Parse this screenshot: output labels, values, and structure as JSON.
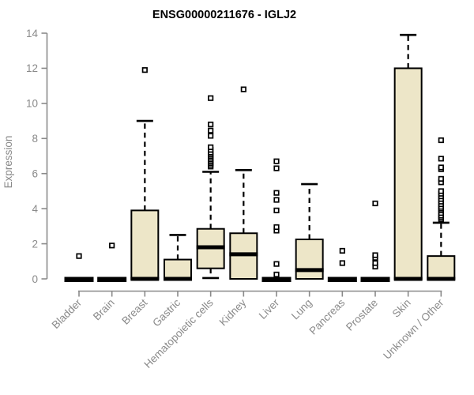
{
  "chart_data": {
    "type": "boxplot",
    "title": "ENSG00000211676 - IGLJ2",
    "xlabel": "",
    "ylabel": "Expression",
    "ylim": [
      0,
      14
    ],
    "yticks": [
      0,
      2,
      4,
      6,
      8,
      10,
      12,
      14
    ],
    "grid": "off",
    "categories": [
      "Bladder",
      "Brain",
      "Breast",
      "Gastric",
      "Hematopoietic cells",
      "Kidney",
      "Liver",
      "Lung",
      "Pancreas",
      "Prostate",
      "Skin",
      "Unknown / Other"
    ],
    "boxes": [
      {
        "category": "Bladder",
        "q1": 0,
        "median": 0,
        "q3": 0,
        "whisker_low": 0,
        "whisker_high": 0,
        "outliers": [
          1.3
        ]
      },
      {
        "category": "Brain",
        "q1": 0,
        "median": 0,
        "q3": 0,
        "whisker_low": 0,
        "whisker_high": 0,
        "outliers": [
          1.9
        ]
      },
      {
        "category": "Breast",
        "q1": 0,
        "median": 0,
        "q3": 3.9,
        "whisker_low": 0,
        "whisker_high": 9.0,
        "outliers": [
          11.9
        ]
      },
      {
        "category": "Gastric",
        "q1": 0,
        "median": 0,
        "q3": 1.1,
        "whisker_low": 0,
        "whisker_high": 2.5,
        "outliers": []
      },
      {
        "category": "Hematopoietic cells",
        "q1": 0.6,
        "median": 1.8,
        "q3": 2.85,
        "whisker_low": 0.05,
        "whisker_high": 6.1,
        "outliers": [
          6.4,
          6.5,
          6.6,
          6.7,
          6.8,
          6.9,
          7.0,
          7.1,
          7.2,
          7.35,
          7.5,
          8.15,
          8.45,
          8.8,
          10.3
        ]
      },
      {
        "category": "Kidney",
        "q1": 0,
        "median": 1.4,
        "q3": 2.6,
        "whisker_low": 0,
        "whisker_high": 6.2,
        "outliers": [
          10.8
        ]
      },
      {
        "category": "Liver",
        "q1": 0,
        "median": 0,
        "q3": 0,
        "whisker_low": 0,
        "whisker_high": 0,
        "outliers": [
          0.25,
          0.85,
          2.75,
          2.95,
          3.9,
          4.5,
          4.9,
          6.3,
          6.7
        ]
      },
      {
        "category": "Lung",
        "q1": 0,
        "median": 0.5,
        "q3": 2.25,
        "whisker_low": 0,
        "whisker_high": 5.4,
        "outliers": []
      },
      {
        "category": "Pancreas",
        "q1": 0,
        "median": 0,
        "q3": 0,
        "whisker_low": 0,
        "whisker_high": 0,
        "outliers": [
          0.9,
          1.6
        ]
      },
      {
        "category": "Prostate",
        "q1": 0,
        "median": 0,
        "q3": 0,
        "whisker_low": 0,
        "whisker_high": 0,
        "outliers": [
          0.7,
          0.9,
          1.2,
          1.35,
          4.3
        ]
      },
      {
        "category": "Skin",
        "q1": 0,
        "median": 0,
        "q3": 12.0,
        "whisker_low": 0,
        "whisker_high": 13.9,
        "outliers": []
      },
      {
        "category": "Unknown / Other",
        "q1": 0,
        "median": 0,
        "q3": 1.3,
        "whisker_low": 0,
        "whisker_high": 3.2,
        "outliers": [
          3.4,
          3.5,
          3.6,
          3.75,
          3.9,
          4.0,
          4.1,
          4.25,
          4.4,
          4.55,
          4.7,
          4.85,
          5.0,
          5.5,
          5.7,
          6.25,
          6.35,
          6.85,
          7.9
        ]
      }
    ],
    "colors": {
      "box_fill": "#EDE6C8",
      "box_border": "#000000",
      "axis": "#8a8a8a",
      "title": "#000000",
      "outlier_fill": "#ffffff"
    }
  }
}
